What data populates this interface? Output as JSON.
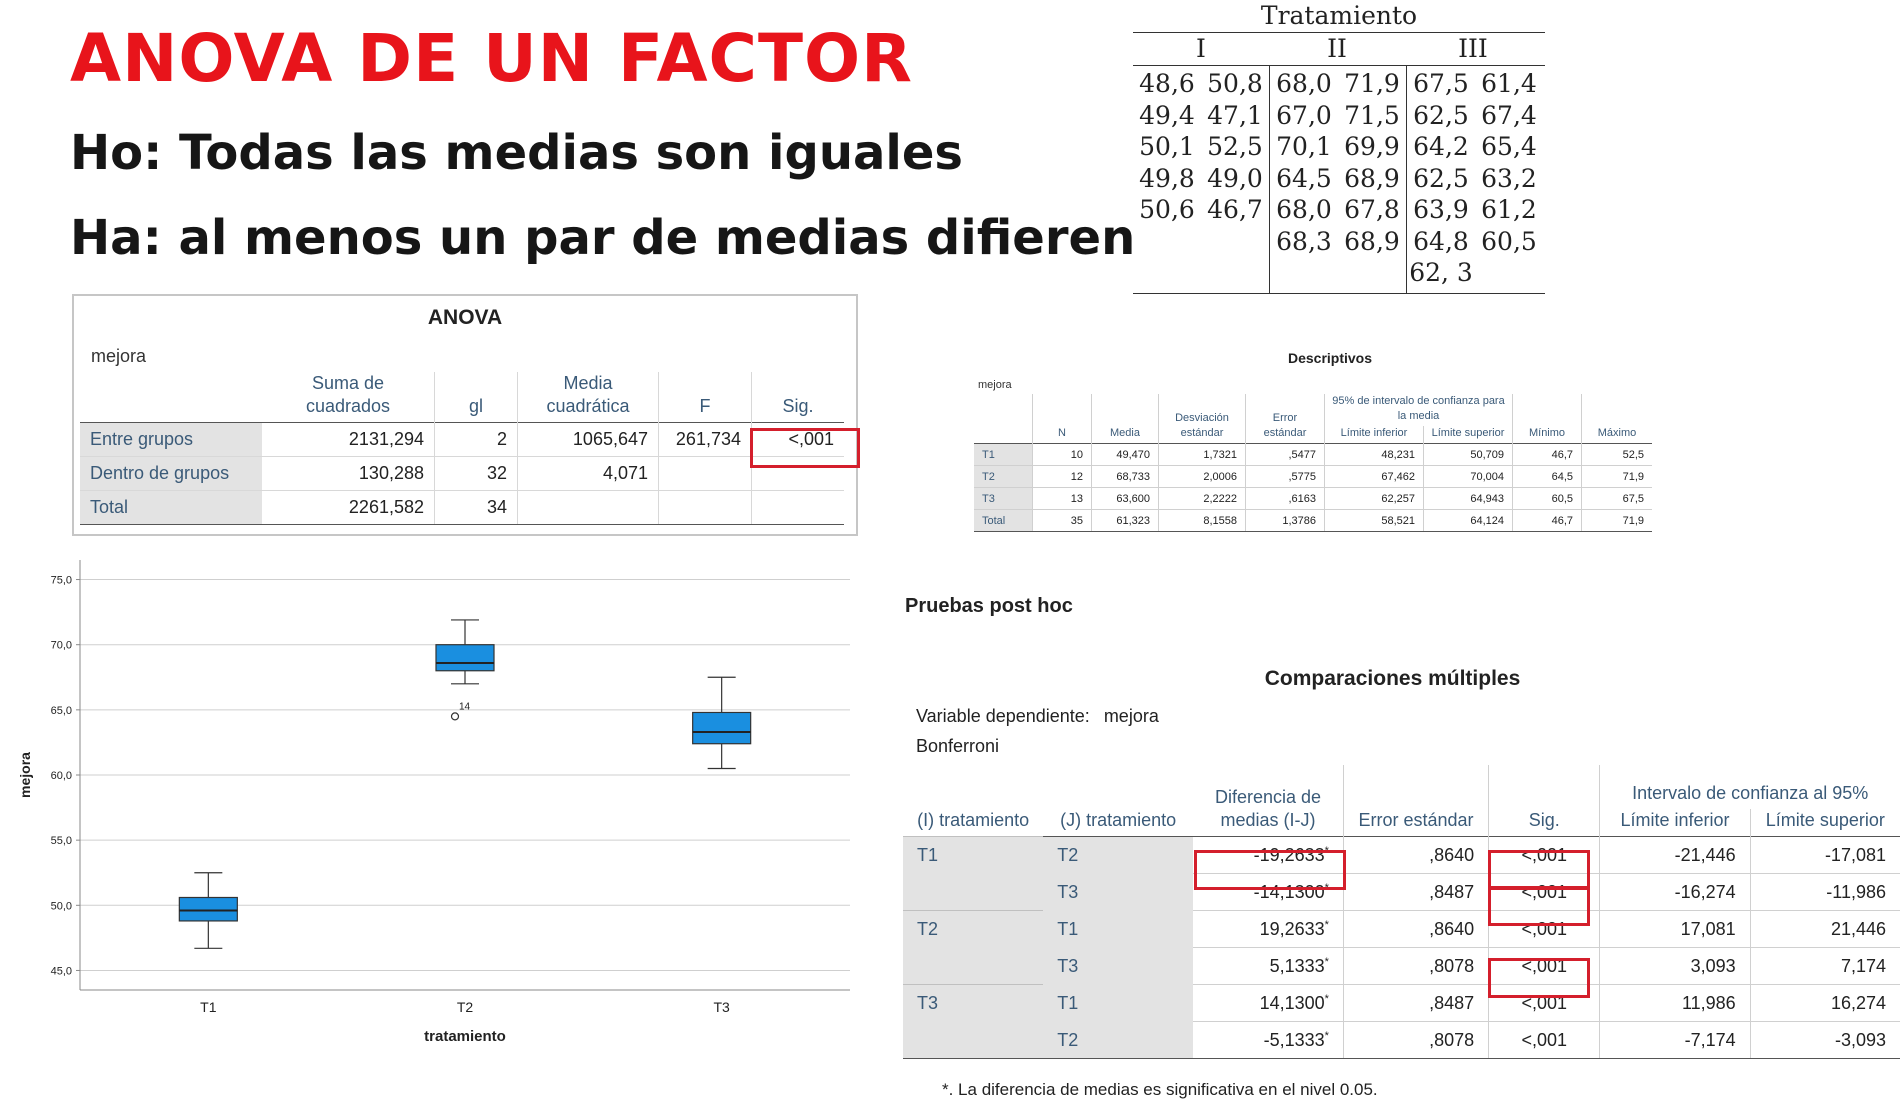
{
  "title": "ANOVA DE UN FACTOR",
  "hypotheses": [
    "Ho: Todas las medias son iguales",
    "Ha: al menos un par de medias difieren"
  ],
  "treatment_table": {
    "title": "Tratamiento",
    "groups": [
      {
        "name": "I",
        "rows": [
          [
            "48,6",
            "50,8"
          ],
          [
            "49,4",
            "47,1"
          ],
          [
            "50,1",
            "52,5"
          ],
          [
            "49,8",
            "49,0"
          ],
          [
            "50,6",
            "46,7"
          ]
        ]
      },
      {
        "name": "II",
        "rows": [
          [
            "68,0",
            "71,9"
          ],
          [
            "67,0",
            "71,5"
          ],
          [
            "70,1",
            "69,9"
          ],
          [
            "64,5",
            "68,9"
          ],
          [
            "68,0",
            "67,8"
          ],
          [
            "68,3",
            "68,9"
          ]
        ]
      },
      {
        "name": "III",
        "rows": [
          [
            "67,5",
            "61,4"
          ],
          [
            "62,5",
            "67,4"
          ],
          [
            "64,2",
            "65,4"
          ],
          [
            "62,5",
            "63,2"
          ],
          [
            "63,9",
            "61,2"
          ],
          [
            "64,8",
            "60,5"
          ],
          [
            "62, 3",
            ""
          ]
        ]
      }
    ]
  },
  "anova": {
    "title": "ANOVA",
    "variable": "mejora",
    "headers": [
      "Suma de cuadrados",
      "gl",
      "Media cuadrática",
      "F",
      "Sig."
    ],
    "rows": [
      {
        "label": "Entre grupos",
        "cells": [
          "2131,294",
          "2",
          "1065,647",
          "261,734",
          "<,001"
        ]
      },
      {
        "label": "Dentro de grupos",
        "cells": [
          "130,288",
          "32",
          "4,071",
          "",
          ""
        ]
      },
      {
        "label": "Total",
        "cells": [
          "2261,582",
          "34",
          "",
          "",
          ""
        ]
      }
    ]
  },
  "chart_data": {
    "type": "box",
    "xlabel": "tratamiento",
    "ylabel": "mejora",
    "ylim": [
      43.5,
      76.5
    ],
    "yticks": [
      "45,0",
      "50,0",
      "55,0",
      "60,0",
      "65,0",
      "70,0",
      "75,0"
    ],
    "ytick_values": [
      45,
      50,
      55,
      60,
      65,
      70,
      75
    ],
    "grid": true,
    "box_color": "#1a8fe0",
    "categories": [
      "T1",
      "T2",
      "T3"
    ],
    "boxes": [
      {
        "min": 46.7,
        "q1": 48.8,
        "median": 49.6,
        "q3": 50.6,
        "max": 52.5
      },
      {
        "min": 67.0,
        "q1": 68.0,
        "median": 68.6,
        "q3": 70.0,
        "max": 71.9
      },
      {
        "min": 60.5,
        "q1": 62.4,
        "median": 63.3,
        "q3": 64.8,
        "max": 67.5
      }
    ],
    "outliers": [
      {
        "category": "T2",
        "value": 64.5,
        "label": "14"
      }
    ]
  },
  "descriptivos": {
    "title": "Descriptivos",
    "variable": "mejora",
    "ci_header": "95% de intervalo de confianza para la media",
    "headers": [
      "N",
      "Media",
      "Desviación estándar",
      "Error estándar",
      "Límite inferior",
      "Límite superior",
      "Mínimo",
      "Máximo"
    ],
    "rows": [
      {
        "label": "T1",
        "cells": [
          "10",
          "49,470",
          "1,7321",
          ",5477",
          "48,231",
          "50,709",
          "46,7",
          "52,5"
        ]
      },
      {
        "label": "T2",
        "cells": [
          "12",
          "68,733",
          "2,0006",
          ",5775",
          "67,462",
          "70,004",
          "64,5",
          "71,9"
        ]
      },
      {
        "label": "T3",
        "cells": [
          "13",
          "63,600",
          "2,2222",
          ",6163",
          "62,257",
          "64,943",
          "60,5",
          "67,5"
        ]
      },
      {
        "label": "Total",
        "cells": [
          "35",
          "61,323",
          "8,1558",
          "1,3786",
          "58,521",
          "64,124",
          "46,7",
          "71,9"
        ]
      }
    ]
  },
  "post_hoc": {
    "section_title": "Pruebas post hoc",
    "title": "Comparaciones múltiples",
    "dependent_label": "Variable dependiente:",
    "dependent_value": "mejora",
    "method": "Bonferroni",
    "ci_header": "Intervalo de confianza al 95%",
    "headers": [
      "(I) tratamiento",
      "(J) tratamiento",
      "Diferencia de medias (I-J)",
      "Error estándar",
      "Sig.",
      "Límite inferior",
      "Límite superior"
    ],
    "star": "*",
    "rows": [
      {
        "i": "T1",
        "j": "T2",
        "diff": "-19,2633",
        "se": ",8640",
        "sig": "<,001",
        "lo": "-21,446",
        "hi": "-17,081"
      },
      {
        "i": "",
        "j": "T3",
        "diff": "-14,1300",
        "se": ",8487",
        "sig": "<,001",
        "lo": "-16,274",
        "hi": "-11,986"
      },
      {
        "i": "T2",
        "j": "T1",
        "diff": "19,2633",
        "se": ",8640",
        "sig": "<,001",
        "lo": "17,081",
        "hi": "21,446"
      },
      {
        "i": "",
        "j": "T3",
        "diff": "5,1333",
        "se": ",8078",
        "sig": "<,001",
        "lo": "3,093",
        "hi": "7,174"
      },
      {
        "i": "T3",
        "j": "T1",
        "diff": "14,1300",
        "se": ",8487",
        "sig": "<,001",
        "lo": "11,986",
        "hi": "16,274"
      },
      {
        "i": "",
        "j": "T2",
        "diff": "-5,1333",
        "se": ",8078",
        "sig": "<,001",
        "lo": "-7,174",
        "hi": "-3,093"
      }
    ],
    "footnote": "*. La diferencia de medias es significativa en el nivel 0.05."
  }
}
